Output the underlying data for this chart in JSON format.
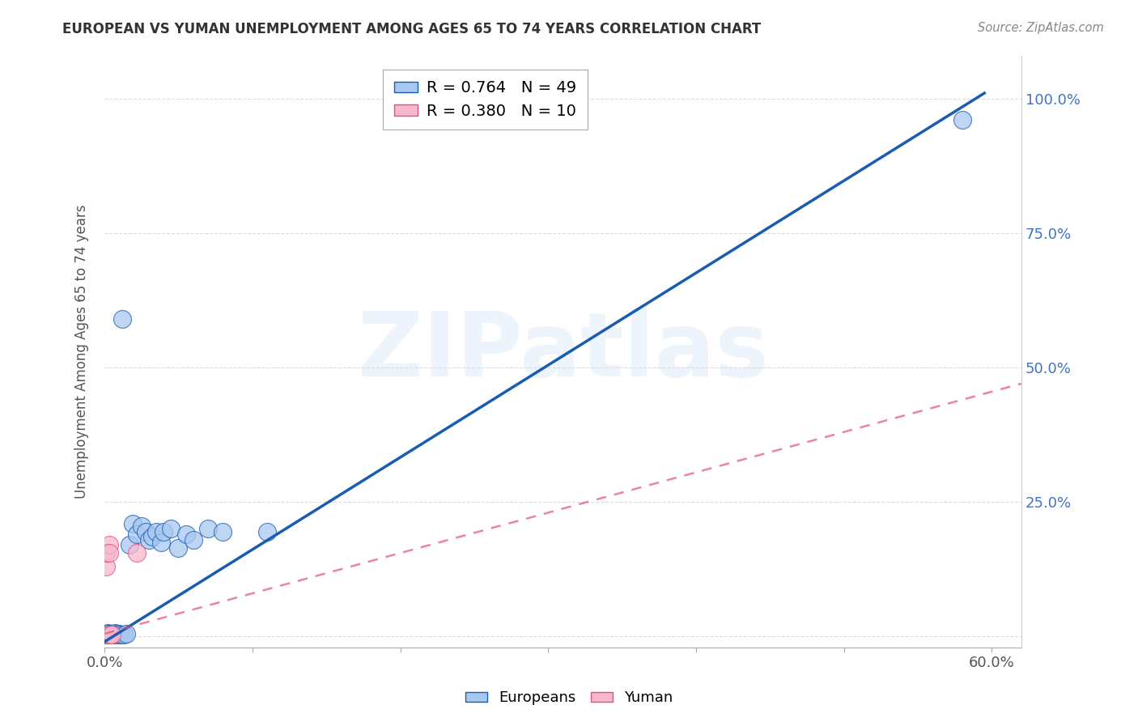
{
  "title": "EUROPEAN VS YUMAN UNEMPLOYMENT AMONG AGES 65 TO 74 YEARS CORRELATION CHART",
  "source": "Source: ZipAtlas.com",
  "ylabel": "Unemployment Among Ages 65 to 74 years",
  "xlim": [
    0.0,
    0.62
  ],
  "ylim": [
    -0.02,
    1.08
  ],
  "european_R": 0.764,
  "european_N": 49,
  "yuman_R": 0.38,
  "yuman_N": 10,
  "european_color": "#a8c8f0",
  "yuman_color": "#f8b8cc",
  "european_line_color": "#1a5cb0",
  "yuman_line_color": "#e05080",
  "background_color": "#ffffff",
  "watermark": "ZIPatlas",
  "eu_line_x0": 0.0,
  "eu_line_y0": -0.01,
  "eu_line_x1": 0.595,
  "eu_line_y1": 1.01,
  "yu_line_x0": 0.0,
  "yu_line_y0": 0.005,
  "yu_line_x1": 0.62,
  "yu_line_y1": 0.47,
  "european_x": [
    0.001,
    0.001,
    0.001,
    0.001,
    0.001,
    0.002,
    0.002,
    0.002,
    0.002,
    0.002,
    0.003,
    0.003,
    0.003,
    0.003,
    0.004,
    0.004,
    0.005,
    0.005,
    0.005,
    0.006,
    0.006,
    0.007,
    0.007,
    0.008,
    0.009,
    0.01,
    0.011,
    0.012,
    0.013,
    0.015,
    0.017,
    0.019,
    0.022,
    0.025,
    0.028,
    0.03,
    0.032,
    0.035,
    0.038,
    0.04,
    0.045,
    0.05,
    0.055,
    0.06,
    0.07,
    0.08,
    0.11,
    0.28,
    0.58
  ],
  "european_y": [
    0.003,
    0.004,
    0.003,
    0.005,
    0.004,
    0.003,
    0.004,
    0.005,
    0.003,
    0.006,
    0.004,
    0.003,
    0.005,
    0.004,
    0.004,
    0.005,
    0.003,
    0.004,
    0.005,
    0.003,
    0.005,
    0.004,
    0.006,
    0.005,
    0.004,
    0.005,
    0.003,
    0.59,
    0.004,
    0.005,
    0.17,
    0.21,
    0.19,
    0.205,
    0.195,
    0.18,
    0.185,
    0.195,
    0.175,
    0.195,
    0.2,
    0.165,
    0.19,
    0.18,
    0.2,
    0.195,
    0.195,
    0.97,
    0.96
  ],
  "yuman_x": [
    0.001,
    0.001,
    0.001,
    0.002,
    0.002,
    0.003,
    0.003,
    0.004,
    0.005,
    0.022
  ],
  "yuman_y": [
    0.003,
    0.13,
    0.155,
    0.003,
    0.004,
    0.17,
    0.155,
    0.003,
    0.004,
    0.155
  ]
}
